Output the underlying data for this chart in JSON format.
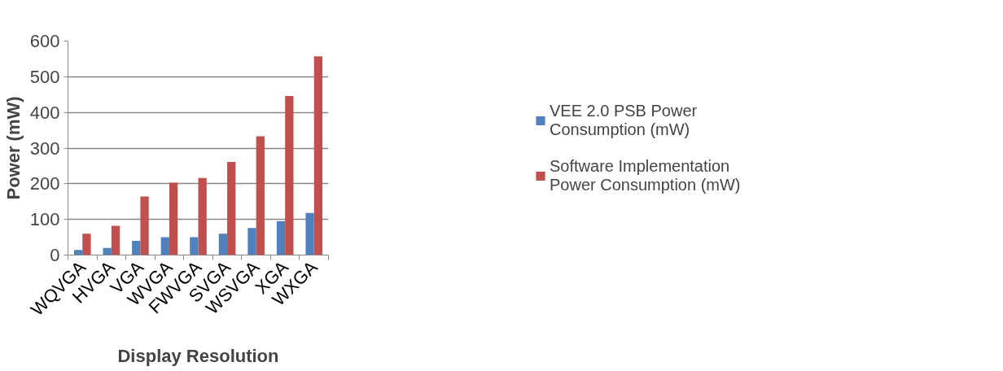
{
  "chart_data": {
    "type": "bar",
    "xlabel": "Display Resolution",
    "ylabel": "Power (mW)",
    "categories": [
      "WQVGA",
      "HVGA",
      "VGA",
      "WVGA",
      "FWVGA",
      "SVGA",
      "WSVGA",
      "XGA",
      "WXGA"
    ],
    "series": [
      {
        "name": "VEE 2.0 PSB Power Consumption (mW)",
        "color": "#4f81bd",
        "values": [
          14,
          20,
          40,
          50,
          50,
          60,
          76,
          95,
          118
        ]
      },
      {
        "name": "Software Implementation Power Consumption (mW)",
        "color": "#c0504d",
        "values": [
          60,
          82,
          164,
          203,
          216,
          261,
          333,
          446,
          557
        ]
      }
    ],
    "ylim": [
      0,
      600
    ],
    "yticks": [
      0,
      100,
      200,
      300,
      400,
      500,
      600
    ],
    "grid": "y",
    "legend": "right"
  }
}
